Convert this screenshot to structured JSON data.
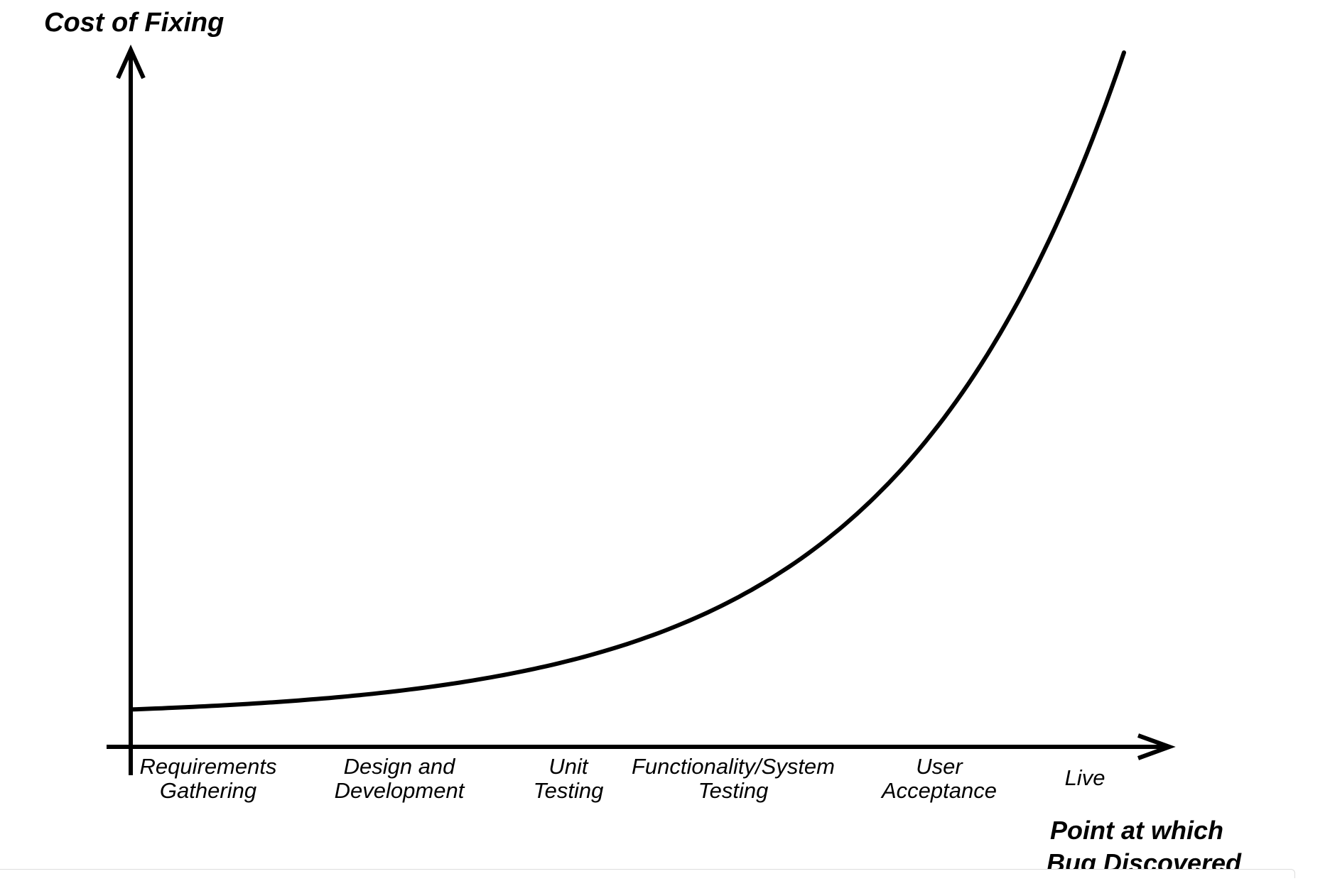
{
  "chart_data": {
    "type": "line",
    "title": "",
    "ylabel": "Cost of Fixing",
    "xlabel_lines": [
      "Point at which",
      "Bug Discovered"
    ],
    "categories": [
      [
        "Requirements",
        "Gathering"
      ],
      [
        "Design and",
        "Development"
      ],
      [
        "Unit",
        "Testing"
      ],
      [
        "Functionality/System",
        "Testing"
      ],
      [
        "User",
        "Acceptance"
      ],
      [
        "Live"
      ]
    ],
    "curve": {
      "shape": "exponential",
      "x_range": [
        0,
        5
      ],
      "y_start": 0.03,
      "y_end": 1.0
    },
    "grid": false,
    "legend": "none",
    "colors": {
      "axis": "#000000",
      "curve": "#000000",
      "background": "#ffffff"
    }
  }
}
